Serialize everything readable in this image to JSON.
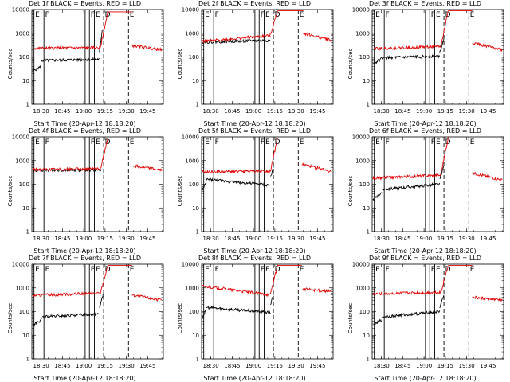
{
  "colors": {
    "black_series": "#000000",
    "red_series": "#e00000",
    "background": "#ffffff"
  },
  "common": {
    "ylabel": "Counts/sec",
    "xlabel": "Start Time (20-Apr-12 18:18:20)",
    "xticks": [
      "18:30",
      "18:45",
      "19:00",
      "19:15",
      "19:30",
      "19:45"
    ],
    "yticks": [
      "1",
      "10",
      "100",
      "1000",
      "10000"
    ],
    "marker_labels": [
      "E",
      "F",
      "F",
      "E",
      "D",
      "E"
    ]
  },
  "chart_data": [
    {
      "type": "line",
      "title": "Det 1f BLACK = Events, RED = LLD",
      "xlabel": "Start Time (20-Apr-12 18:18:20)",
      "ylabel": "Counts/sec",
      "ylim": [
        1,
        10000
      ],
      "yscale": "log",
      "series": [
        {
          "name": "Events",
          "color": "black",
          "segments": [
            {
              "from": "18:24",
              "to": "18:30",
              "start": 25,
              "end": 40
            },
            {
              "from": "18:30",
              "to": "19:11",
              "start": 70,
              "end": 80
            },
            {
              "from": "19:11",
              "to": "19:13",
              "start": 150,
              "end": 1400
            }
          ]
        },
        {
          "name": "LLD",
          "color": "red",
          "segments": [
            {
              "from": "18:25",
              "to": "19:12",
              "start": 230,
              "end": 250
            },
            {
              "from": "19:12",
              "to": "19:17",
              "start": 300,
              "end": 8000
            },
            {
              "from": "19:17",
              "to": "19:34",
              "start": 8000,
              "end": 8000
            },
            {
              "from": "19:34",
              "to": "19:55",
              "start": 300,
              "end": 200
            }
          ]
        }
      ]
    },
    {
      "type": "line",
      "title": "Det 2f BLACK = Events, RED = LLD",
      "xlabel": "Start Time (20-Apr-12 18:18:20)",
      "ylabel": "Counts/sec",
      "ylim": [
        1,
        10000
      ],
      "yscale": "log",
      "series": [
        {
          "name": "Events",
          "color": "black",
          "segments": [
            {
              "from": "18:24",
              "to": "19:12",
              "start": 420,
              "end": 500
            }
          ]
        },
        {
          "name": "LLD",
          "color": "red",
          "segments": [
            {
              "from": "18:24",
              "to": "19:12",
              "start": 450,
              "end": 800
            },
            {
              "from": "19:12",
              "to": "19:17",
              "start": 900,
              "end": 9000
            },
            {
              "from": "19:17",
              "to": "19:35",
              "start": 9000,
              "end": 9000
            },
            {
              "from": "19:35",
              "to": "19:55",
              "start": 1000,
              "end": 500
            }
          ]
        }
      ]
    },
    {
      "type": "line",
      "title": "Det 3f BLACK = Events, RED = LLD",
      "xlabel": "Start Time (20-Apr-12 18:18:20)",
      "ylabel": "Counts/sec",
      "ylim": [
        1,
        10000
      ],
      "yscale": "log",
      "series": [
        {
          "name": "Events",
          "color": "black",
          "segments": [
            {
              "from": "18:24",
              "to": "18:31",
              "start": 50,
              "end": 90
            },
            {
              "from": "18:31",
              "to": "19:11",
              "start": 90,
              "end": 110
            },
            {
              "from": "19:11",
              "to": "19:14",
              "start": 150,
              "end": 600
            }
          ]
        },
        {
          "name": "LLD",
          "color": "red",
          "segments": [
            {
              "from": "18:25",
              "to": "19:12",
              "start": 220,
              "end": 280
            },
            {
              "from": "19:12",
              "to": "19:17",
              "start": 300,
              "end": 9000
            },
            {
              "from": "19:17",
              "to": "19:34",
              "start": 9000,
              "end": 9000
            },
            {
              "from": "19:34",
              "to": "19:55",
              "start": 400,
              "end": 200
            }
          ]
        }
      ]
    },
    {
      "type": "line",
      "title": "Det 4f BLACK = Events, RED = LLD",
      "xlabel": "Start Time (20-Apr-12 18:18:20)",
      "ylabel": "Counts/sec",
      "ylim": [
        1,
        10000
      ],
      "yscale": "log",
      "series": [
        {
          "name": "Events",
          "color": "black",
          "segments": [
            {
              "from": "18:24",
              "to": "19:12",
              "start": 390,
              "end": 400
            }
          ]
        },
        {
          "name": "LLD",
          "color": "red",
          "segments": [
            {
              "from": "18:24",
              "to": "19:12",
              "start": 420,
              "end": 450
            },
            {
              "from": "19:12",
              "to": "19:17",
              "start": 500,
              "end": 9000
            },
            {
              "from": "19:17",
              "to": "19:35",
              "start": 9000,
              "end": 9000
            },
            {
              "from": "19:35",
              "to": "19:55",
              "start": 600,
              "end": 400
            }
          ]
        }
      ]
    },
    {
      "type": "line",
      "title": "Det 5f BLACK = Events, RED = LLD",
      "xlabel": "Start Time (20-Apr-12 18:18:20)",
      "ylabel": "Counts/sec",
      "ylim": [
        1,
        10000
      ],
      "yscale": "log",
      "series": [
        {
          "name": "Events",
          "color": "black",
          "segments": [
            {
              "from": "18:24",
              "to": "18:27",
              "start": 60,
              "end": 110
            },
            {
              "from": "18:27",
              "to": "19:12",
              "start": 160,
              "end": 90
            },
            {
              "from": "19:12",
              "to": "19:14",
              "start": 200,
              "end": 500
            }
          ]
        },
        {
          "name": "LLD",
          "color": "red",
          "segments": [
            {
              "from": "18:24",
              "to": "19:12",
              "start": 330,
              "end": 360
            },
            {
              "from": "19:12",
              "to": "19:17",
              "start": 400,
              "end": 9000
            },
            {
              "from": "19:17",
              "to": "19:34",
              "start": 9000,
              "end": 9000
            },
            {
              "from": "19:34",
              "to": "19:55",
              "start": 700,
              "end": 350
            }
          ]
        }
      ]
    },
    {
      "type": "line",
      "title": "Det 6f BLACK = Events, RED = LLD",
      "xlabel": "Start Time (20-Apr-12 18:18:20)",
      "ylabel": "Counts/sec",
      "ylim": [
        1,
        10000
      ],
      "yscale": "log",
      "series": [
        {
          "name": "Events",
          "color": "black",
          "segments": [
            {
              "from": "18:24",
              "to": "18:31",
              "start": 20,
              "end": 50
            },
            {
              "from": "18:31",
              "to": "19:11",
              "start": 60,
              "end": 100
            },
            {
              "from": "19:11",
              "to": "19:14",
              "start": 150,
              "end": 600
            }
          ]
        },
        {
          "name": "LLD",
          "color": "red",
          "segments": [
            {
              "from": "18:24",
              "to": "19:12",
              "start": 180,
              "end": 240
            },
            {
              "from": "19:12",
              "to": "19:17",
              "start": 300,
              "end": 9000
            },
            {
              "from": "19:17",
              "to": "19:34",
              "start": 9000,
              "end": 9000
            },
            {
              "from": "19:34",
              "to": "19:55",
              "start": 300,
              "end": 150
            }
          ]
        }
      ]
    },
    {
      "type": "line",
      "title": "Det 7f BLACK = Events, RED = LLD",
      "xlabel": "Start Time (20-Apr-12 18:18:20)",
      "ylabel": "Counts/sec",
      "ylim": [
        1,
        10000
      ],
      "yscale": "log",
      "series": [
        {
          "name": "Events",
          "color": "black",
          "segments": [
            {
              "from": "18:24",
              "to": "18:31",
              "start": 25,
              "end": 50
            },
            {
              "from": "18:31",
              "to": "19:11",
              "start": 60,
              "end": 80
            },
            {
              "from": "19:11",
              "to": "19:14",
              "start": 150,
              "end": 600
            }
          ]
        },
        {
          "name": "LLD",
          "color": "red",
          "segments": [
            {
              "from": "18:24",
              "to": "19:12",
              "start": 480,
              "end": 600
            },
            {
              "from": "19:12",
              "to": "19:17",
              "start": 700,
              "end": 9000
            },
            {
              "from": "19:17",
              "to": "19:34",
              "start": 9000,
              "end": 9000
            },
            {
              "from": "19:34",
              "to": "19:55",
              "start": 500,
              "end": 300
            }
          ]
        }
      ]
    },
    {
      "type": "line",
      "title": "Det 8f BLACK = Events, RED = LLD",
      "xlabel": "Start Time (20-Apr-12 18:18:20)",
      "ylabel": "Counts/sec",
      "ylim": [
        1,
        10000
      ],
      "yscale": "log",
      "series": [
        {
          "name": "Events",
          "color": "black",
          "segments": [
            {
              "from": "18:24",
              "to": "18:27",
              "start": 60,
              "end": 120
            },
            {
              "from": "18:27",
              "to": "19:12",
              "start": 150,
              "end": 90
            },
            {
              "from": "19:12",
              "to": "19:14",
              "start": 200,
              "end": 500
            }
          ]
        },
        {
          "name": "LLD",
          "color": "red",
          "segments": [
            {
              "from": "18:24",
              "to": "19:12",
              "start": 1200,
              "end": 500
            },
            {
              "from": "19:12",
              "to": "19:17",
              "start": 600,
              "end": 9000
            },
            {
              "from": "19:17",
              "to": "19:34",
              "start": 9000,
              "end": 9000
            },
            {
              "from": "19:34",
              "to": "19:55",
              "start": 900,
              "end": 700
            }
          ]
        }
      ]
    },
    {
      "type": "line",
      "title": "Det 9f BLACK = Events, RED = LLD",
      "xlabel": "Start Time (20-Apr-12 18:18:20)",
      "ylabel": "Counts/sec",
      "ylim": [
        1,
        10000
      ],
      "yscale": "log",
      "series": [
        {
          "name": "Events",
          "color": "black",
          "segments": [
            {
              "from": "18:24",
              "to": "18:31",
              "start": 25,
              "end": 50
            },
            {
              "from": "18:31",
              "to": "19:11",
              "start": 60,
              "end": 100
            },
            {
              "from": "19:11",
              "to": "19:14",
              "start": 150,
              "end": 500
            }
          ]
        },
        {
          "name": "LLD",
          "color": "red",
          "segments": [
            {
              "from": "18:24",
              "to": "19:12",
              "start": 550,
              "end": 650
            },
            {
              "from": "19:12",
              "to": "19:17",
              "start": 700,
              "end": 9000
            },
            {
              "from": "19:17",
              "to": "19:34",
              "start": 9000,
              "end": 9000
            },
            {
              "from": "19:34",
              "to": "19:55",
              "start": 400,
              "end": 300
            }
          ]
        }
      ]
    }
  ]
}
